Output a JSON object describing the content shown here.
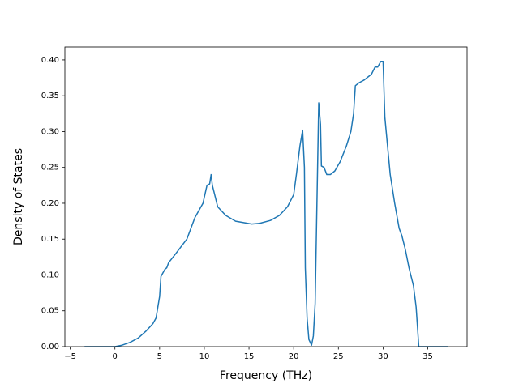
{
  "chart_data": {
    "type": "line",
    "xlabel": "Frequency (THz)",
    "ylabel": "Density of States",
    "x": [
      -3.4,
      0,
      0.8,
      1.7,
      2.6,
      3.5,
      4.25,
      4.6,
      5.0,
      5.15,
      5.6,
      5.8,
      6.0,
      6.7,
      8.05,
      8.95,
      9.85,
      10.3,
      10.6,
      10.76,
      10.9,
      11.2,
      11.5,
      12.4,
      13.5,
      15.3,
      16.2,
      17.4,
      18.4,
      19.3,
      20.0,
      20.3,
      20.7,
      21.0,
      21.2,
      21.3,
      21.5,
      21.7,
      22.0,
      22.2,
      22.4,
      22.6,
      22.8,
      23.0,
      23.1,
      23.4,
      23.7,
      24.1,
      24.6,
      25.2,
      25.9,
      26.4,
      26.7,
      26.9,
      27.3,
      27.9,
      28.7,
      29.1,
      29.4,
      29.75,
      30.0,
      30.2,
      30.5,
      30.8,
      31.3,
      31.8,
      32.1,
      32.5,
      32.9,
      33.4,
      33.7,
      34.0,
      37.25
    ],
    "series": [
      {
        "name": "DOS",
        "color": "#1f77b4",
        "values": [
          0,
          0,
          0.002,
          0.006,
          0.012,
          0.022,
          0.032,
          0.04,
          0.07,
          0.098,
          0.108,
          0.11,
          0.117,
          0.128,
          0.15,
          0.18,
          0.2,
          0.225,
          0.227,
          0.24,
          0.225,
          0.21,
          0.195,
          0.183,
          0.175,
          0.171,
          0.172,
          0.176,
          0.183,
          0.195,
          0.212,
          0.24,
          0.28,
          0.302,
          0.25,
          0.11,
          0.04,
          0.01,
          0.002,
          0.015,
          0.06,
          0.2,
          0.34,
          0.31,
          0.252,
          0.25,
          0.24,
          0.24,
          0.245,
          0.258,
          0.28,
          0.3,
          0.325,
          0.364,
          0.368,
          0.372,
          0.38,
          0.39,
          0.39,
          0.398,
          0.398,
          0.32,
          0.28,
          0.24,
          0.2,
          0.165,
          0.155,
          0.135,
          0.11,
          0.085,
          0.055,
          0,
          0
        ]
      }
    ],
    "xlim": [
      -5.6,
      39.4
    ],
    "xticks": [
      {
        "value": -5,
        "label": "−5"
      },
      0,
      5,
      10,
      15,
      20,
      25,
      30,
      35
    ],
    "ylim": [
      0,
      0.418
    ],
    "yticks": [
      {
        "value": 0,
        "label": "0.00"
      },
      {
        "value": 0.05,
        "label": "0.05"
      },
      {
        "value": 0.1,
        "label": "0.10"
      },
      {
        "value": 0.15,
        "label": "0.15"
      },
      {
        "value": 0.2,
        "label": "0.20"
      },
      {
        "value": 0.25,
        "label": "0.25"
      },
      {
        "value": 0.3,
        "label": "0.30"
      },
      {
        "value": 0.35,
        "label": "0.35"
      },
      {
        "value": 0.4,
        "label": "0.40"
      }
    ],
    "grid": false
  }
}
